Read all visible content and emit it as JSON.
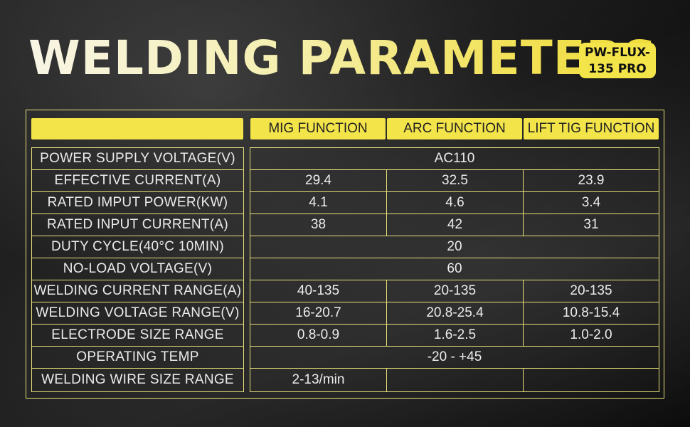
{
  "title": "WELDING PARAMETERS",
  "badge": {
    "line1": "PW-FLUX-",
    "line2": "135 PRO"
  },
  "colors": {
    "accent": "#f3e44a",
    "border": "#e8e07a",
    "background": "#1c1c1c",
    "text": "#ececec"
  },
  "table": {
    "headers": [
      "",
      "MIG FUNCTION",
      "ARC FUNCTION",
      "LIFT TIG FUNCTION"
    ],
    "rows": [
      {
        "label": "POWER SUPPLY VOLTAGE(V)",
        "merged": "AC110"
      },
      {
        "label": "EFFECTIVE CURRENT(A)",
        "mig": "29.4",
        "arc": "32.5",
        "tig": "23.9"
      },
      {
        "label": "RATED IMPUT POWER(KW)",
        "mig": "4.1",
        "arc": "4.6",
        "tig": "3.4"
      },
      {
        "label": "RATED INPUT CURRENT(A)",
        "mig": "38",
        "arc": "42",
        "tig": "31"
      },
      {
        "label": "DUTY CYCLE(40°C 10MIN)",
        "merged": "20"
      },
      {
        "label": "NO-LOAD VOLTAGE(V)",
        "merged": "60"
      },
      {
        "label": "WELDING CURRENT RANGE(A)",
        "mig": "40-135",
        "arc": "20-135",
        "tig": "20-135"
      },
      {
        "label": "WELDING VOLTAGE RANGE(V)",
        "mig": "16-20.7",
        "arc": "20.8-25.4",
        "tig": "10.8-15.4"
      },
      {
        "label": "ELECTRODE SIZE RANGE",
        "mig": "0.8-0.9",
        "arc": "1.6-2.5",
        "tig": "1.0-2.0"
      },
      {
        "label": "OPERATING TEMP",
        "merged": "-20 - +45"
      },
      {
        "label": "WELDING WIRE SIZE RANGE",
        "mig": "2-13/min",
        "arc": "",
        "tig": ""
      }
    ]
  }
}
